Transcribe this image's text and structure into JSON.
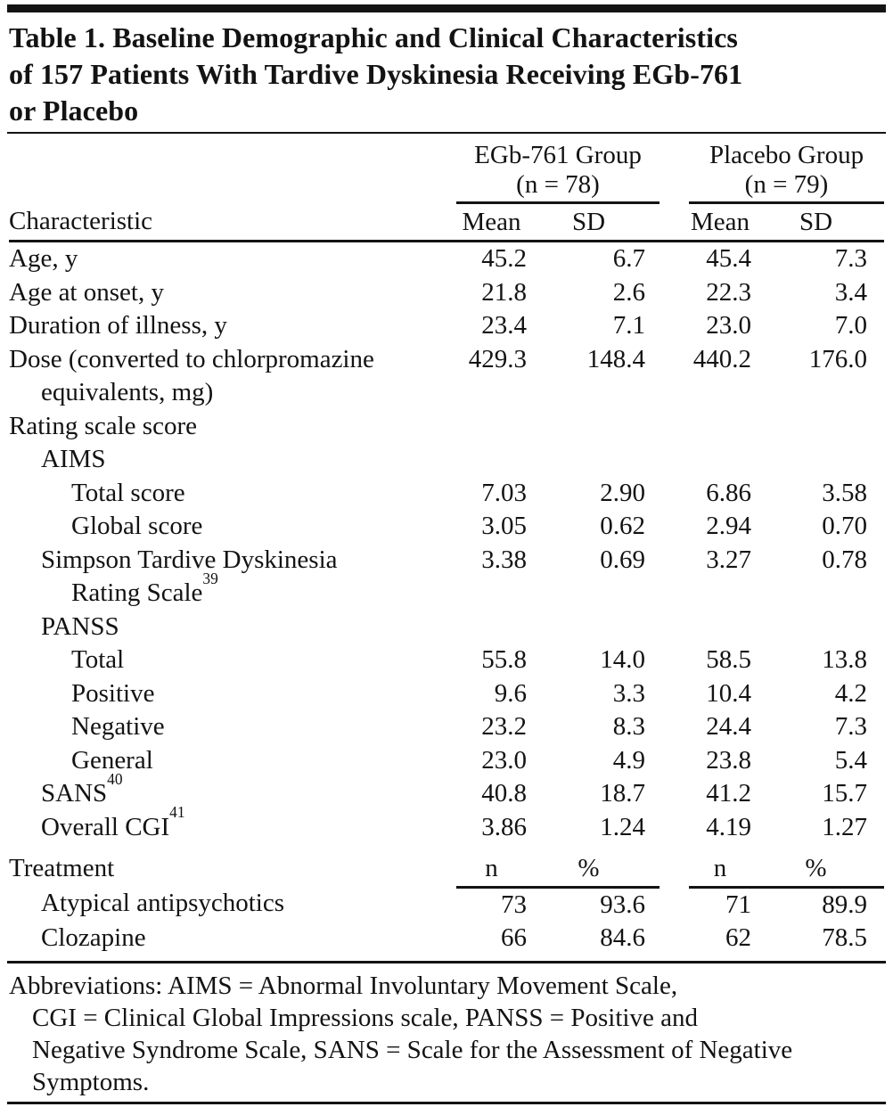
{
  "title": "Table 1. Baseline Demographic and Clinical Characteristics\nof 157 Patients With Tardive Dyskinesia Receiving EGb-761\nor Placebo",
  "header": {
    "characteristic_label": "Characteristic",
    "groups": [
      {
        "name": "EGb-761 Group",
        "n_label": "(n = 78)"
      },
      {
        "name": "Placebo Group",
        "n_label": "(n = 79)"
      }
    ],
    "stat_columns": [
      "Mean",
      "SD",
      "Mean",
      "SD"
    ]
  },
  "rows": [
    {
      "label": "Age, y",
      "indent": 0,
      "values": [
        "45.2",
        "6.7",
        "45.4",
        "7.3"
      ]
    },
    {
      "label": "Age at onset, y",
      "indent": 0,
      "values": [
        "21.8",
        "2.6",
        "22.3",
        "3.4"
      ]
    },
    {
      "label": "Duration of illness, y",
      "indent": 0,
      "values": [
        "23.4",
        "7.1",
        "23.0",
        "7.0"
      ]
    },
    {
      "label": "Dose (converted to chlorpromazine",
      "label2": "equivalents, mg)",
      "indent": 0,
      "values": [
        "429.3",
        "148.4",
        "440.2",
        "176.0"
      ]
    },
    {
      "label": "Rating scale score",
      "indent": 0,
      "values": []
    },
    {
      "label": "AIMS",
      "indent": 1,
      "values": []
    },
    {
      "label": "Total score",
      "indent": 2,
      "values": [
        "7.03",
        "2.90",
        "6.86",
        "3.58"
      ]
    },
    {
      "label": "Global score",
      "indent": 2,
      "values": [
        "3.05",
        "0.62",
        "2.94",
        "0.70"
      ]
    },
    {
      "label": "Simpson Tardive Dyskinesia",
      "label2": "Rating Scale",
      "label2_sup": "39",
      "indent": 1,
      "values": [
        "3.38",
        "0.69",
        "3.27",
        "0.78"
      ]
    },
    {
      "label": "PANSS",
      "indent": 1,
      "values": []
    },
    {
      "label": "Total",
      "indent": 2,
      "values": [
        "55.8",
        "14.0",
        "58.5",
        "13.8"
      ]
    },
    {
      "label": "Positive",
      "indent": 2,
      "values": [
        "9.6",
        "3.3",
        "10.4",
        "4.2"
      ]
    },
    {
      "label": "Negative",
      "indent": 2,
      "values": [
        "23.2",
        "8.3",
        "24.4",
        "7.3"
      ]
    },
    {
      "label": "General",
      "indent": 2,
      "values": [
        "23.0",
        "4.9",
        "23.8",
        "5.4"
      ]
    },
    {
      "label": "SANS",
      "sup": "40",
      "indent": 1,
      "values": [
        "40.8",
        "18.7",
        "41.2",
        "15.7"
      ]
    },
    {
      "label": "Overall CGI",
      "sup": "41",
      "indent": 1,
      "values": [
        "3.86",
        "1.24",
        "4.19",
        "1.27"
      ]
    }
  ],
  "treatment": {
    "label": "Treatment",
    "stat_columns": [
      "n",
      "%",
      "n",
      "%"
    ],
    "rows": [
      {
        "label": "Atypical antipsychotics",
        "indent": 1,
        "values": [
          "73",
          "93.6",
          "71",
          "89.9"
        ]
      },
      {
        "label": "Clozapine",
        "indent": 1,
        "values": [
          "66",
          "84.6",
          "62",
          "78.5"
        ]
      }
    ]
  },
  "footnote": {
    "lines": [
      "Abbreviations: AIMS = Abnormal Involuntary Movement Scale,",
      "CGI = Clinical Global Impressions scale, PANSS = Positive and",
      "Negative Syndrome Scale, SANS = Scale for the Assessment of Negative",
      "Symptoms."
    ]
  },
  "colors": {
    "text": "#131313",
    "rule": "#131313",
    "background": "#ffffff"
  }
}
